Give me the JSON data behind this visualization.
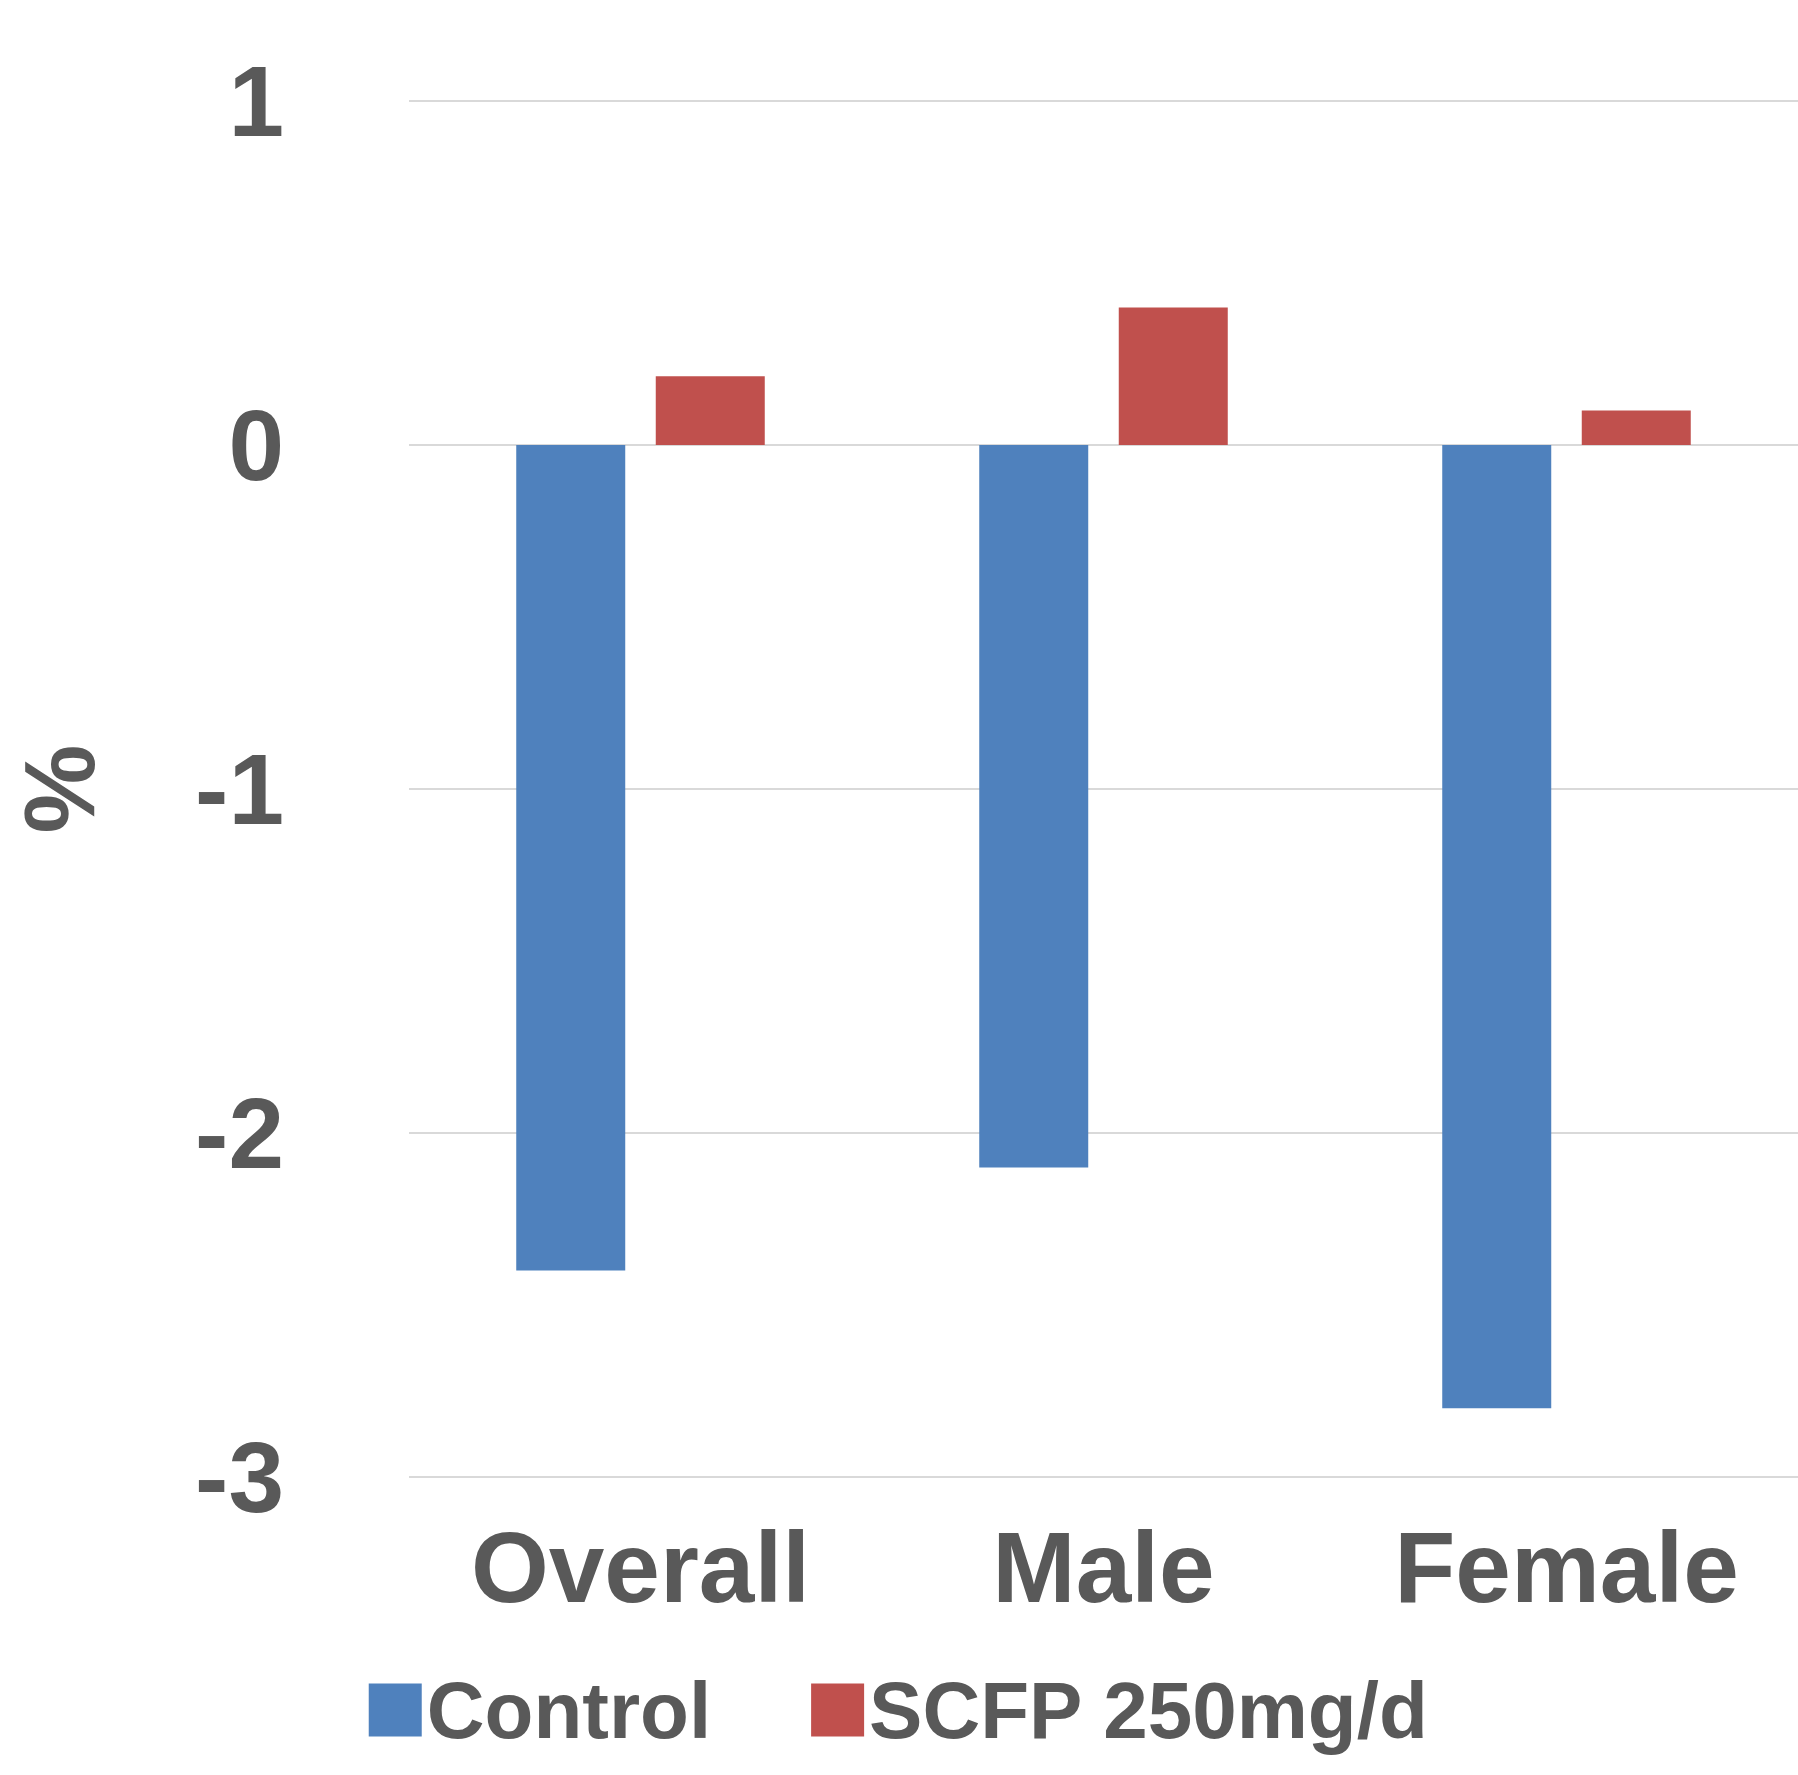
{
  "chart_data": {
    "type": "bar",
    "ylabel": "%",
    "categories": [
      "Overall",
      "Male",
      "Female"
    ],
    "series": [
      {
        "name": "Control",
        "color": "#4f81bd",
        "values": [
          -2.4,
          -2.1,
          -2.8
        ]
      },
      {
        "name": "SCFP 250mg/d",
        "color": "#c0504d",
        "values": [
          0.2,
          0.4,
          0.1
        ]
      }
    ],
    "ylim": [
      -3,
      1
    ],
    "yticks": [
      -3,
      -2,
      -1,
      0,
      1
    ],
    "grid": "y",
    "legend": "bottom"
  }
}
